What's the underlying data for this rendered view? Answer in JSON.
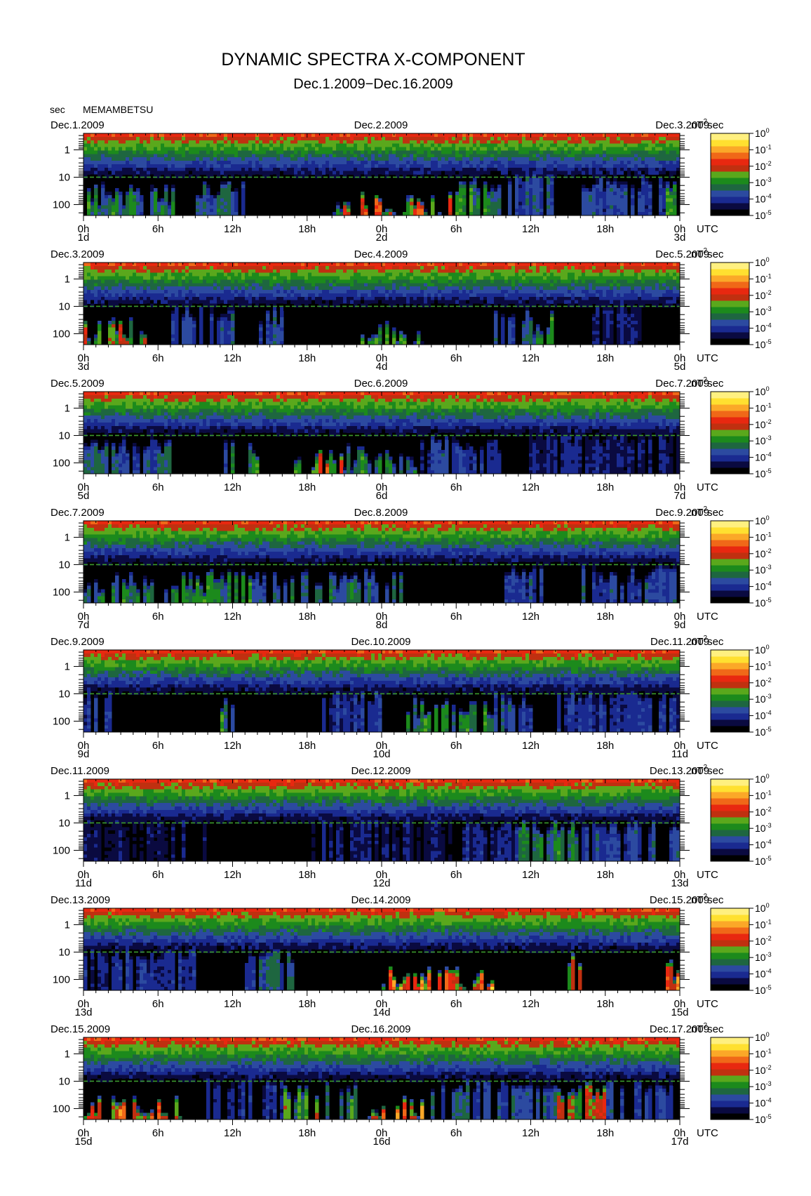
{
  "title": "DYNAMIC SPECTRA X-COMPONENT",
  "subtitle": "Dec.1.2009−Dec.16.2009",
  "station": {
    "unit_label": "sec",
    "name": "MEMAMBETSU"
  },
  "chart_data": {
    "type": "heatmap",
    "y_axis": {
      "scale": "log",
      "inverted": true,
      "unit": "sec",
      "tick_labels": [
        "1",
        "10",
        "100"
      ],
      "range_sec": [
        0.25,
        250
      ]
    },
    "x_axis": {
      "unit": "UTC",
      "tick_labels": [
        "0h",
        "6h",
        "12h",
        "18h",
        "0h",
        "6h",
        "12h",
        "18h",
        "0h"
      ],
      "hours_per_panel": 48
    },
    "colorbar": {
      "unit_label": "nT²sec",
      "unit_text": "nT",
      "unit_sup": "2",
      "unit_suffix": "sec",
      "tick_labels": [
        "10",
        "10",
        "10",
        "10",
        "10",
        "10"
      ],
      "tick_exponents": [
        "0",
        "-1",
        "-2",
        "-3",
        "-4",
        "-5"
      ],
      "range_log10": [
        -5,
        0
      ],
      "colors": [
        "#000000",
        "#0a0a40",
        "#1a2a90",
        "#2c4aa0",
        "#1e6640",
        "#1c8a1c",
        "#5aa81c",
        "#c03010",
        "#e82810",
        "#f06818",
        "#fba828",
        "#ffe030",
        "#fff080"
      ]
    },
    "panels": [
      {
        "left_date": "Dec.1.2009",
        "center_date": "Dec.2.2009",
        "right_date": "Dec.3.2009",
        "day_labels": [
          "1d",
          "2d",
          "3d"
        ],
        "events": [
          [
            0.3,
            7.5,
            2,
            0.45
          ],
          [
            8,
            13,
            1.6,
            0.35
          ],
          [
            20,
            30,
            2.4,
            0.75
          ],
          [
            30,
            34,
            1.6,
            0.5
          ],
          [
            34,
            38,
            1.2,
            0.3
          ],
          [
            40,
            47,
            1.4,
            0.3
          ],
          [
            47,
            48,
            1.6,
            0.65
          ]
        ]
      },
      {
        "left_date": "Dec.3.2009",
        "center_date": "Dec.4.2009",
        "right_date": "Dec.5.2009",
        "day_labels": [
          "3d",
          "4d",
          "5d"
        ],
        "events": [
          [
            0,
            5,
            2.2,
            0.65
          ],
          [
            7,
            12,
            1.4,
            0.3
          ],
          [
            14,
            16,
            1.6,
            0.35
          ],
          [
            22,
            27,
            2.6,
            0.55
          ],
          [
            27,
            29,
            3,
            0.35
          ],
          [
            33,
            36,
            1.6,
            0.3
          ],
          [
            36,
            38,
            2,
            0.45
          ],
          [
            41,
            45,
            1.2,
            0.2
          ]
        ]
      },
      {
        "left_date": "Dec.5.2009",
        "center_date": "Dec.6.2009",
        "right_date": "Dec.7.2009",
        "day_labels": [
          "5d",
          "6d",
          "7d"
        ],
        "events": [
          [
            0,
            7,
            1.6,
            0.35
          ],
          [
            11,
            14,
            1.8,
            0.45
          ],
          [
            17,
            21,
            2.4,
            0.7
          ],
          [
            21,
            27,
            2.2,
            0.45
          ],
          [
            27,
            34,
            1.6,
            0.3
          ],
          [
            36,
            48,
            1.2,
            0.2
          ]
        ]
      },
      {
        "left_date": "Dec.7.2009",
        "center_date": "Dec.8.2009",
        "right_date": "Dec.9.2009",
        "day_labels": [
          "7d",
          "8d",
          "9d"
        ],
        "events": [
          [
            0,
            10,
            2,
            0.45
          ],
          [
            10,
            14,
            1.6,
            0.45
          ],
          [
            14,
            18,
            1.8,
            0.4
          ],
          [
            18,
            26,
            1.8,
            0.4
          ],
          [
            34,
            37,
            1.4,
            0.3
          ],
          [
            40,
            48,
            1.6,
            0.3
          ]
        ]
      },
      {
        "left_date": "Dec.9.2009",
        "center_date": "Dec.10.2009",
        "right_date": "Dec.11.2009",
        "day_labels": [
          "9d",
          "10d",
          "11d"
        ],
        "events": [
          [
            0,
            3,
            1.2,
            0.25
          ],
          [
            11,
            12,
            1.6,
            0.5
          ],
          [
            19,
            24,
            1.2,
            0.25
          ],
          [
            26,
            33,
            1.8,
            0.5
          ],
          [
            33,
            36,
            1.4,
            0.3
          ],
          [
            38,
            48,
            1.2,
            0.25
          ]
        ]
      },
      {
        "left_date": "Dec.11.2009",
        "center_date": "Dec.12.2009",
        "right_date": "Dec.13.2009",
        "day_labels": [
          "11d",
          "12d",
          "13d"
        ],
        "events": [
          [
            0,
            10,
            1,
            0.15
          ],
          [
            18,
            30,
            1,
            0.18
          ],
          [
            30,
            35,
            1.2,
            0.22
          ],
          [
            35,
            40,
            1.4,
            0.45
          ],
          [
            40,
            48,
            1.3,
            0.3
          ]
        ]
      },
      {
        "left_date": "Dec.13.2009",
        "center_date": "Dec.14.2009",
        "right_date": "Dec.15.2009",
        "day_labels": [
          "13d",
          "14d",
          "15d"
        ],
        "events": [
          [
            0,
            9,
            1.2,
            0.25
          ],
          [
            13,
            17,
            1.4,
            0.35
          ],
          [
            24,
            33,
            2.4,
            0.85
          ],
          [
            39,
            40,
            1.6,
            0.6
          ],
          [
            47,
            48,
            2,
            0.8
          ]
        ]
      },
      {
        "left_date": "Dec.15.2009",
        "center_date": "Dec.16.2009",
        "right_date": "Dec.17.2009",
        "day_labels": [
          "15d",
          "16d",
          "17d"
        ],
        "events": [
          [
            0,
            8,
            2.4,
            0.85
          ],
          [
            10,
            16,
            1.2,
            0.25
          ],
          [
            16,
            22,
            1.6,
            0.55
          ],
          [
            23,
            28,
            2.4,
            0.8
          ],
          [
            28,
            38,
            1.4,
            0.35
          ],
          [
            38,
            42,
            1.6,
            0.65
          ],
          [
            42,
            48,
            1.4,
            0.3
          ]
        ]
      }
    ]
  }
}
